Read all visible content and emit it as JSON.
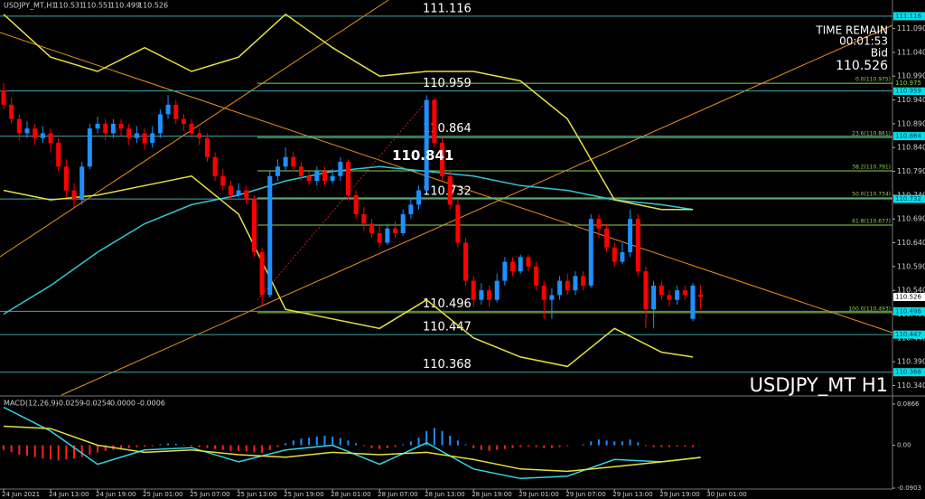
{
  "chart_data": [
    {
      "type": "candlestick",
      "symbol": "USDJPY_MT,H1",
      "title": "USDJPY_MT H1",
      "info": [
        "TIME REMAIN",
        "00:01:53",
        "Bid"
      ],
      "up_color": "#1e90ff",
      "down_color": "#ff0000",
      "ohlc": {
        "open": [
          110.96,
          110.93,
          110.9,
          110.87,
          110.88,
          110.86,
          110.87,
          110.85,
          110.8,
          110.75,
          110.73,
          110.8,
          110.88,
          110.89,
          110.87,
          110.89,
          110.88,
          110.86,
          110.87,
          110.85,
          110.87,
          110.91,
          110.93,
          110.9,
          110.89,
          110.87,
          110.86,
          110.82,
          110.78,
          110.76,
          110.74,
          110.75,
          110.73,
          110.62,
          110.53,
          110.78,
          110.8,
          110.82,
          110.8,
          110.78,
          110.77,
          110.79,
          110.77,
          110.78,
          110.81,
          110.74,
          110.7,
          110.68,
          110.66,
          110.64,
          110.67,
          110.66,
          110.7,
          110.72,
          110.75,
          110.94,
          110.85,
          110.78,
          110.72,
          110.64,
          110.56,
          110.52,
          110.54,
          110.52,
          110.56,
          110.6,
          110.58,
          110.61,
          110.59,
          110.55,
          110.52,
          110.53,
          110.56,
          110.54,
          110.57,
          110.55,
          110.69,
          110.67,
          110.63,
          110.6,
          110.62,
          110.69,
          110.58,
          110.5,
          110.55,
          110.53,
          110.52,
          110.54,
          110.48,
          110.531
        ],
        "high": [
          110.975,
          110.945,
          110.91,
          110.895,
          110.89,
          110.885,
          110.88,
          110.86,
          110.815,
          110.765,
          110.81,
          110.89,
          110.905,
          110.9,
          110.9,
          110.9,
          110.89,
          110.885,
          110.88,
          110.885,
          110.92,
          110.95,
          110.94,
          110.91,
          110.9,
          110.88,
          110.87,
          110.83,
          110.795,
          110.77,
          110.765,
          110.76,
          110.74,
          110.63,
          110.79,
          110.815,
          110.84,
          110.83,
          110.81,
          110.79,
          110.8,
          110.8,
          110.795,
          110.82,
          110.815,
          110.75,
          110.715,
          110.69,
          110.675,
          110.68,
          110.685,
          110.71,
          110.735,
          110.76,
          110.95,
          110.945,
          110.86,
          110.79,
          110.73,
          110.65,
          110.57,
          110.555,
          110.55,
          110.575,
          110.61,
          110.61,
          110.615,
          110.615,
          110.6,
          110.56,
          110.545,
          110.57,
          110.575,
          110.58,
          110.58,
          110.7,
          110.7,
          110.68,
          110.64,
          110.64,
          110.71,
          110.7,
          110.59,
          110.56,
          110.56,
          110.54,
          110.55,
          110.55,
          110.555,
          110.551
        ],
        "low": [
          110.92,
          110.89,
          110.855,
          110.86,
          110.845,
          110.85,
          110.83,
          110.79,
          110.735,
          110.715,
          110.72,
          110.795,
          110.87,
          110.855,
          110.86,
          110.865,
          110.845,
          110.85,
          110.835,
          110.84,
          110.86,
          110.9,
          110.89,
          110.875,
          110.86,
          110.845,
          110.81,
          110.77,
          110.75,
          110.73,
          110.735,
          110.72,
          110.61,
          110.505,
          110.525,
          110.77,
          110.79,
          110.79,
          110.77,
          110.76,
          110.76,
          110.76,
          110.765,
          110.77,
          110.73,
          110.69,
          110.665,
          110.65,
          110.63,
          110.635,
          110.65,
          110.655,
          110.69,
          110.71,
          110.745,
          110.84,
          110.77,
          110.71,
          110.63,
          110.55,
          110.505,
          110.51,
          110.505,
          110.515,
          110.55,
          110.57,
          110.575,
          110.58,
          110.54,
          110.48,
          110.48,
          110.52,
          110.53,
          110.53,
          110.54,
          110.545,
          110.65,
          110.62,
          110.59,
          110.595,
          110.61,
          110.57,
          110.46,
          110.46,
          110.52,
          110.505,
          110.51,
          110.52,
          110.475,
          110.499
        ],
        "close": [
          110.93,
          110.9,
          110.87,
          110.88,
          110.86,
          110.87,
          110.85,
          110.8,
          110.75,
          110.73,
          110.8,
          110.88,
          110.89,
          110.87,
          110.89,
          110.88,
          110.86,
          110.87,
          110.85,
          110.87,
          110.91,
          110.93,
          110.9,
          110.89,
          110.87,
          110.86,
          110.82,
          110.78,
          110.76,
          110.74,
          110.75,
          110.73,
          110.62,
          110.53,
          110.78,
          110.8,
          110.82,
          110.8,
          110.78,
          110.77,
          110.79,
          110.77,
          110.78,
          110.81,
          110.74,
          110.7,
          110.68,
          110.66,
          110.64,
          110.67,
          110.66,
          110.7,
          110.72,
          110.75,
          110.94,
          110.85,
          110.78,
          110.72,
          110.64,
          110.56,
          110.52,
          110.54,
          110.52,
          110.56,
          110.6,
          110.58,
          110.61,
          110.59,
          110.55,
          110.52,
          110.53,
          110.56,
          110.54,
          110.57,
          110.55,
          110.69,
          110.67,
          110.63,
          110.6,
          110.62,
          110.69,
          110.58,
          110.5,
          110.55,
          110.53,
          110.52,
          110.54,
          110.53,
          110.55,
          110.526
        ]
      },
      "xticks": [
        {
          "value": 0,
          "label": "24 Jun 2021"
        },
        {
          "value": 6,
          "label": "24 Jun 13:00"
        },
        {
          "value": 12,
          "label": "24 Jun 19:00"
        },
        {
          "value": 18,
          "label": "25 Jun 01:00"
        },
        {
          "value": 24,
          "label": "25 Jun 07:00"
        },
        {
          "value": 30,
          "label": "25 Jun 13:00"
        },
        {
          "value": 36,
          "label": "25 Jun 19:00"
        },
        {
          "value": 42,
          "label": "28 Jun 01:00"
        },
        {
          "value": 48,
          "label": "28 Jun 07:00"
        },
        {
          "value": 54,
          "label": "28 Jun 13:00"
        },
        {
          "value": 60,
          "label": "28 Jun 19:00"
        },
        {
          "value": 66,
          "label": "29 Jun 01:00"
        },
        {
          "value": 72,
          "label": "29 Jun 07:00"
        },
        {
          "value": 78,
          "label": "29 Jun 13:00"
        },
        {
          "value": 84,
          "label": "29 Jun 19:00"
        },
        {
          "value": 90,
          "label": "30 Jun 01:00"
        }
      ],
      "ylim": [
        110.32,
        111.15
      ],
      "yticks": [
        {
          "value": 110.34,
          "label": "110.340"
        },
        {
          "value": 110.39,
          "label": "110.390"
        },
        {
          "value": 110.44,
          "label": "110.440"
        },
        {
          "value": 110.49,
          "label": "110.490"
        },
        {
          "value": 110.54,
          "label": "110.540"
        },
        {
          "value": 110.59,
          "label": "110.590"
        },
        {
          "value": 110.64,
          "label": "110.640"
        },
        {
          "value": 110.69,
          "label": "110.690"
        },
        {
          "value": 110.74,
          "label": "110.740"
        },
        {
          "value": 110.79,
          "label": "110.790"
        },
        {
          "value": 110.84,
          "label": "110.840"
        },
        {
          "value": 110.89,
          "label": "110.890"
        },
        {
          "value": 110.94,
          "label": "110.940"
        },
        {
          "value": 110.99,
          "label": "110.990"
        },
        {
          "value": 111.04,
          "label": "111.040"
        },
        {
          "value": 111.09,
          "label": "111.090"
        }
      ],
      "levels": [
        111.116,
        110.959,
        110.864,
        110.732,
        110.496,
        110.447,
        110.368
      ],
      "level_color": "#3fa7a7",
      "fib_levels": [
        {
          "value": 110.975,
          "label": "0.0(110.975)"
        },
        {
          "value": 110.861,
          "label": "23.6(110.861)"
        },
        {
          "value": 110.791,
          "label": "38.2(110.791)"
        },
        {
          "value": 110.734,
          "label": "50.0(110.734)"
        },
        {
          "value": 110.677,
          "label": "61.8(110.677)"
        },
        {
          "value": 110.493,
          "label": "100.0(110.493)"
        }
      ],
      "fib_color": "#8fd14f",
      "price_text": 110.841,
      "series": [
        {
          "color": "#33c6d6",
          "x": [
            0,
            6,
            12,
            18,
            24,
            30,
            36,
            42,
            48,
            54,
            60,
            66,
            72,
            78,
            84,
            88
          ],
          "values": [
            110.49,
            110.55,
            110.62,
            110.68,
            110.72,
            110.74,
            110.77,
            110.79,
            110.8,
            110.79,
            110.78,
            110.76,
            110.75,
            110.73,
            110.72,
            110.71
          ]
        },
        {
          "color": "#e6e040",
          "x": [
            0,
            6,
            12,
            18,
            24,
            30,
            36,
            42,
            48,
            54,
            60,
            66,
            72,
            78,
            84,
            88
          ],
          "values": [
            111.12,
            111.03,
            111.0,
            111.05,
            111.0,
            111.03,
            111.12,
            111.05,
            110.99,
            111.0,
            111.0,
            110.98,
            110.9,
            110.73,
            110.71,
            110.71
          ]
        },
        {
          "color": "#e6e040",
          "x": [
            0,
            6,
            12,
            18,
            24,
            30,
            36,
            42,
            48,
            54,
            60,
            66,
            72,
            78,
            84,
            88
          ],
          "values": [
            110.75,
            110.73,
            110.74,
            110.76,
            110.78,
            110.7,
            110.5,
            110.48,
            110.46,
            110.52,
            110.44,
            110.4,
            110.38,
            110.46,
            110.41,
            110.4
          ]
        }
      ]
    },
    {
      "type": "bar",
      "title": "MACD(12,26,9)",
      "readout": [
        -0.0259,
        -0.0254,
        {
          "value": 0,
          "label": "0.0000"
        },
        -0.0006
      ],
      "up_color": "#1e90ff",
      "down_color": "#ff2020",
      "values": [
        -0.01,
        -0.015,
        -0.02,
        -0.022,
        -0.025,
        -0.028,
        -0.03,
        -0.032,
        -0.03,
        -0.028,
        -0.025,
        -0.02,
        -0.015,
        -0.012,
        -0.01,
        -0.008,
        -0.006,
        -0.004,
        -0.003,
        -0.002,
        0.002,
        0.004,
        0.003,
        0.001,
        -0.002,
        -0.004,
        -0.006,
        -0.008,
        -0.01,
        -0.012,
        -0.012,
        -0.013,
        -0.015,
        -0.016,
        -0.01,
        -0.004,
        0.004,
        0.01,
        0.014,
        0.016,
        0.018,
        0.02,
        0.018,
        0.015,
        0.01,
        0.004,
        -0.002,
        -0.006,
        -0.008,
        -0.006,
        -0.004,
        0.002,
        0.008,
        0.016,
        0.03,
        0.036,
        0.03,
        0.02,
        0.01,
        0.002,
        -0.006,
        -0.01,
        -0.012,
        -0.01,
        -0.008,
        -0.006,
        -0.004,
        -0.003,
        -0.004,
        -0.006,
        -0.006,
        -0.004,
        -0.002,
        0.0,
        0.002,
        0.008,
        0.012,
        0.01,
        0.008,
        0.008,
        0.012,
        0.006,
        -0.002,
        -0.004,
        -0.004,
        -0.004,
        -0.003,
        -0.003,
        -0.004,
        -0.0006
      ],
      "ylim": [
        -0.0922,
        0.1018
      ],
      "yticks": [
        0.0866,
        {
          "value": 0,
          "label": "0.00"
        },
        -0.0903
      ],
      "series": [
        {
          "color": "#33d6e6",
          "x": [
            0,
            6,
            12,
            18,
            24,
            30,
            36,
            42,
            48,
            54,
            60,
            66,
            72,
            78,
            84,
            89
          ],
          "values": [
            0.08,
            0.03,
            -0.04,
            -0.01,
            -0.005,
            -0.035,
            -0.01,
            0.0,
            -0.04,
            0.005,
            -0.05,
            -0.07,
            -0.065,
            -0.03,
            -0.035,
            -0.0259
          ]
        },
        {
          "color": "#e6e040",
          "x": [
            0,
            6,
            12,
            18,
            24,
            30,
            36,
            42,
            48,
            54,
            60,
            66,
            72,
            78,
            84,
            89
          ],
          "values": [
            0.04,
            0.035,
            0.0,
            -0.015,
            -0.01,
            -0.02,
            -0.025,
            -0.015,
            -0.02,
            -0.015,
            -0.03,
            -0.05,
            -0.055,
            -0.045,
            -0.035,
            -0.0254
          ]
        }
      ]
    }
  ]
}
